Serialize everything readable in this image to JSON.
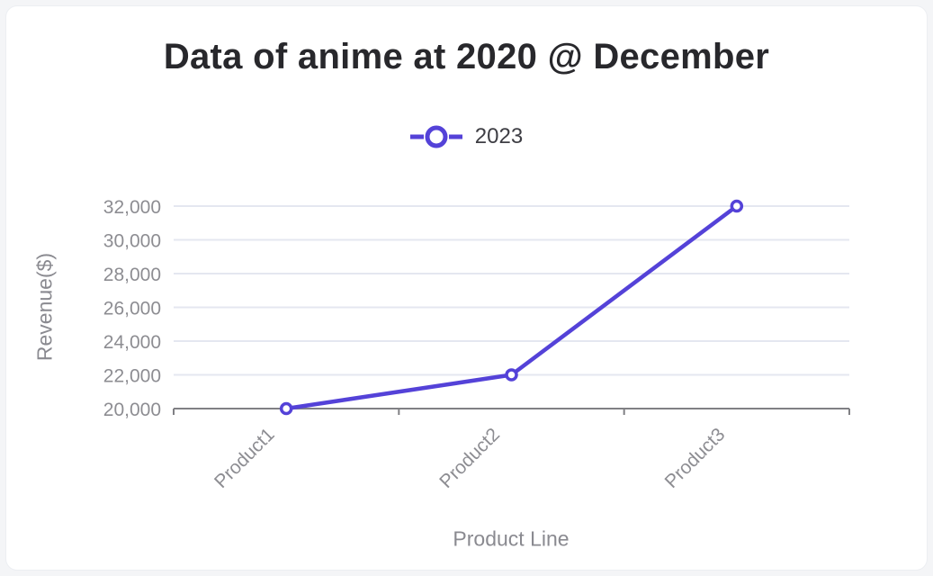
{
  "chart_data": {
    "type": "line",
    "title": "Data of anime at 2020 @ December",
    "categories": [
      "Product1",
      "Product2",
      "Product3"
    ],
    "series": [
      {
        "name": "2023",
        "values": [
          20000,
          22000,
          32000
        ]
      }
    ],
    "xlabel": "Product Line",
    "ylabel": "Revenue($)",
    "ylim": [
      20000,
      32000
    ],
    "ytick_step": 2000,
    "ytick_labels": [
      "20,000",
      "22,000",
      "24,000",
      "26,000",
      "28,000",
      "30,000",
      "32,000"
    ],
    "grid": true,
    "legend_position": "top",
    "colors": {
      "line": "#5442d8",
      "marker_fill": "#ffffff",
      "grid": "#e4e7f0",
      "axis": "#808084",
      "tick_text": "#8d8d92",
      "title_text": "#28282c",
      "card_bg": "#ffffff",
      "page_bg": "#f4f5f7"
    }
  }
}
